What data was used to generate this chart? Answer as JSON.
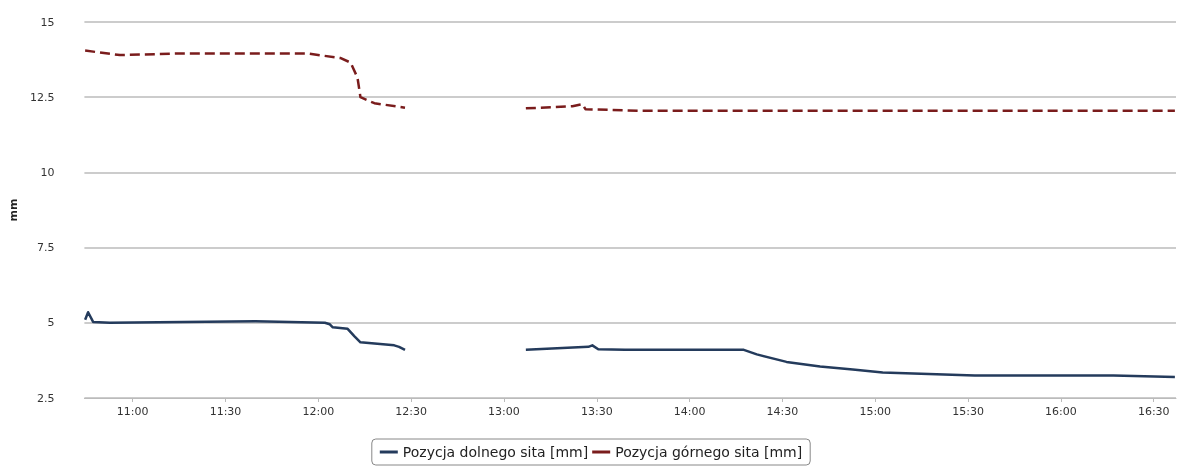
{
  "chart_data": {
    "type": "line",
    "ylabel": "mm",
    "xlim": [
      10.74,
      16.62
    ],
    "xticks": [
      {
        "value": 11,
        "label": "11:00"
      },
      {
        "value": 11.5,
        "label": "11:30"
      },
      {
        "value": 12,
        "label": "12:00"
      },
      {
        "value": 12.5,
        "label": "12:30"
      },
      {
        "value": 13,
        "label": "13:00"
      },
      {
        "value": 13.5,
        "label": "13:30"
      },
      {
        "value": 14,
        "label": "14:00"
      },
      {
        "value": 14.5,
        "label": "14:30"
      },
      {
        "value": 15,
        "label": "15:00"
      },
      {
        "value": 15.5,
        "label": "15:30"
      },
      {
        "value": 16,
        "label": "16:00"
      },
      {
        "value": 16.5,
        "label": "16:30"
      }
    ],
    "ylim": [
      2.5,
      15
    ],
    "yticks": [
      2.5,
      5,
      7.5,
      10,
      12.5,
      15
    ],
    "grid": "y",
    "legend": "bottom",
    "marker": "none",
    "series": [
      {
        "name": "Pozycja dolnego sita [mm]",
        "color": "#243b5c",
        "line_style": "solid",
        "x": [
          10.744,
          10.76,
          10.787,
          10.877,
          11.662,
          12.035,
          12.062,
          12.078,
          12.158,
          12.195,
          12.227,
          12.409,
          12.435,
          12.467,
          12.8,
          13.118,
          13.455,
          13.476,
          13.508,
          13.652,
          14.292,
          14.362,
          14.522,
          14.703,
          14.879,
          15.04,
          15.536,
          16.283,
          16.614
        ],
        "values": [
          5.1,
          5.35,
          5.03,
          5.0,
          5.05,
          5.0,
          4.95,
          4.85,
          4.8,
          4.55,
          4.35,
          4.25,
          4.2,
          4.1,
          null,
          4.1,
          4.2,
          4.25,
          4.12,
          4.1,
          4.1,
          3.95,
          3.7,
          3.55,
          3.45,
          3.35,
          3.25,
          3.25,
          3.2
        ]
      },
      {
        "name": "Pozycja górnego sita [mm]",
        "color": "#7a1c1c",
        "line_style": "dashed",
        "x": [
          10.744,
          10.931,
          11.235,
          11.945,
          12.121,
          12.174,
          12.211,
          12.227,
          12.302,
          12.467,
          12.8,
          13.118,
          13.369,
          13.423,
          13.439,
          13.722,
          15.146,
          16.614
        ],
        "values": [
          14.05,
          13.9,
          13.95,
          13.95,
          13.8,
          13.65,
          13.15,
          12.5,
          12.3,
          12.15,
          null,
          12.13,
          12.2,
          12.27,
          12.1,
          12.05,
          12.05,
          12.05
        ]
      }
    ]
  }
}
